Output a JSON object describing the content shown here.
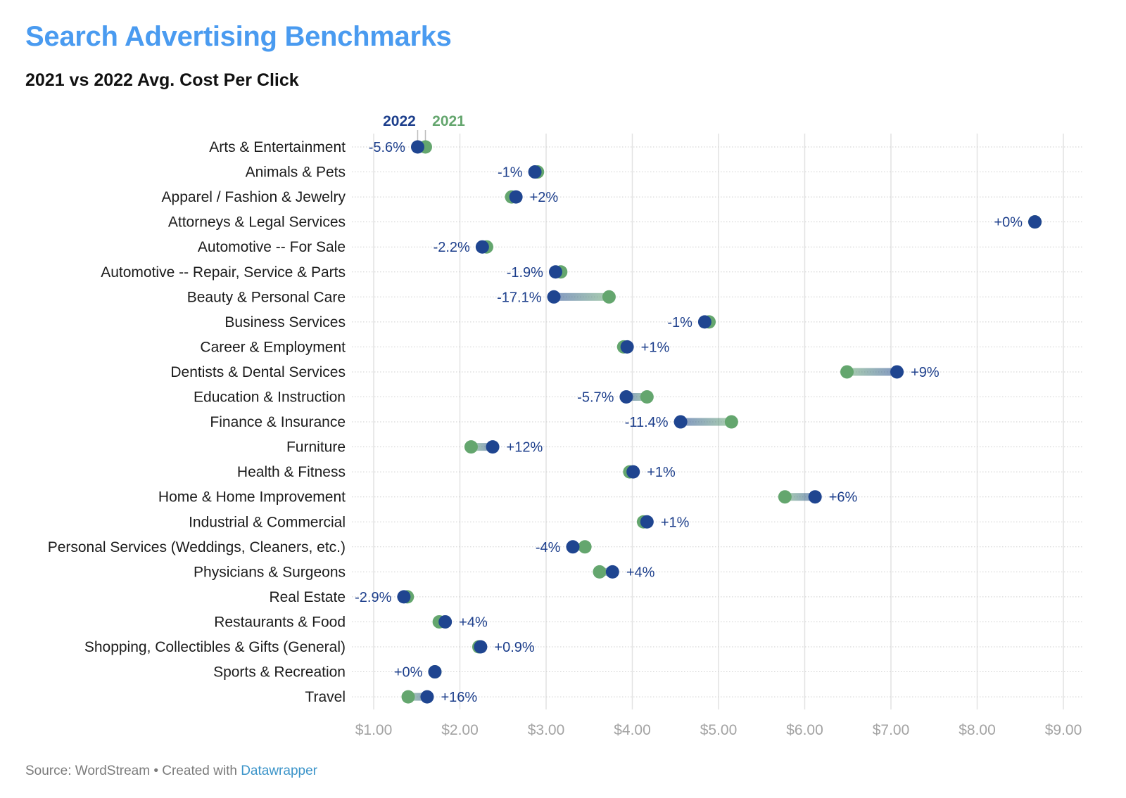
{
  "header": {
    "title": "Search Advertising Benchmarks",
    "subtitle": "2021 vs 2022 Avg. Cost Per Click"
  },
  "footer": {
    "source_text": "Source: WordStream • Created with ",
    "link_label": "Datawrapper"
  },
  "colors": {
    "title": "#4a9bf0",
    "series_2022": "#1f4590",
    "series_2021": "#64a66e",
    "gridline": "#e2e2e2",
    "tick_text": "#a3a3a3"
  },
  "chart_data": {
    "type": "dumbbell",
    "title": "Search Advertising Benchmarks",
    "subtitle": "2021 vs 2022 Avg. Cost Per Click",
    "xlabel": "",
    "ylabel": "",
    "xlim": [
      1,
      9
    ],
    "x_ticks": [
      1,
      2,
      3,
      4,
      5,
      6,
      7,
      8,
      9
    ],
    "x_tick_labels": [
      "$1.00",
      "$2.00",
      "$3.00",
      "$4.00",
      "$5.00",
      "$6.00",
      "$7.00",
      "$8.00",
      "$9.00"
    ],
    "grid": true,
    "legend": {
      "position": "top",
      "entries": [
        "2022",
        "2021"
      ]
    },
    "series": [
      {
        "name": "2021"
      },
      {
        "name": "2022"
      }
    ],
    "categories": [
      "Arts & Entertainment",
      "Animals & Pets",
      "Apparel / Fashion & Jewelry",
      "Attorneys & Legal Services",
      "Automotive -- For Sale",
      "Automotive -- Repair, Service & Parts",
      "Beauty & Personal Care",
      "Business Services",
      "Career & Employment",
      "Dentists & Dental Services",
      "Education & Instruction",
      "Finance & Insurance",
      "Furniture",
      "Health & Fitness",
      "Home & Home Improvement",
      "Industrial & Commercial",
      "Personal Services (Weddings, Cleaners, etc.)",
      "Physicians & Surgeons",
      "Real Estate",
      "Restaurants & Food",
      "Shopping, Collectibles & Gifts (General)",
      "Sports & Recreation",
      "Travel"
    ],
    "rows": [
      {
        "category": "Arts & Entertainment",
        "v2021": 1.6,
        "v2022": 1.51,
        "change": "-5.6%"
      },
      {
        "category": "Animals & Pets",
        "v2021": 2.9,
        "v2022": 2.87,
        "change": "-1%"
      },
      {
        "category": "Apparel / Fashion & Jewelry",
        "v2021": 2.6,
        "v2022": 2.65,
        "change": "+2%"
      },
      {
        "category": "Attorneys & Legal Services",
        "v2021": 8.67,
        "v2022": 8.67,
        "change": "+0%"
      },
      {
        "category": "Automotive -- For Sale",
        "v2021": 2.31,
        "v2022": 2.26,
        "change": "-2.2%"
      },
      {
        "category": "Automotive -- Repair, Service & Parts",
        "v2021": 3.17,
        "v2022": 3.11,
        "change": "-1.9%"
      },
      {
        "category": "Beauty & Personal Care",
        "v2021": 3.73,
        "v2022": 3.09,
        "change": "-17.1%"
      },
      {
        "category": "Business Services",
        "v2021": 4.89,
        "v2022": 4.84,
        "change": "-1%"
      },
      {
        "category": "Career & Employment",
        "v2021": 3.9,
        "v2022": 3.94,
        "change": "+1%"
      },
      {
        "category": "Dentists & Dental Services",
        "v2021": 6.49,
        "v2022": 7.07,
        "change": "+9%"
      },
      {
        "category": "Education & Instruction",
        "v2021": 4.17,
        "v2022": 3.93,
        "change": "-5.7%"
      },
      {
        "category": "Finance & Insurance",
        "v2021": 5.15,
        "v2022": 4.56,
        "change": "-11.4%"
      },
      {
        "category": "Furniture",
        "v2021": 2.13,
        "v2022": 2.38,
        "change": "+12%"
      },
      {
        "category": "Health & Fitness",
        "v2021": 3.97,
        "v2022": 4.01,
        "change": "+1%"
      },
      {
        "category": "Home & Home Improvement",
        "v2021": 5.77,
        "v2022": 6.12,
        "change": "+6%"
      },
      {
        "category": "Industrial & Commercial",
        "v2021": 4.13,
        "v2022": 4.17,
        "change": "+1%"
      },
      {
        "category": "Personal Services (Weddings, Cleaners, etc.)",
        "v2021": 3.45,
        "v2022": 3.31,
        "change": "-4%"
      },
      {
        "category": "Physicians & Surgeons",
        "v2021": 3.62,
        "v2022": 3.77,
        "change": "+4%"
      },
      {
        "category": "Real Estate",
        "v2021": 1.39,
        "v2022": 1.35,
        "change": "-2.9%"
      },
      {
        "category": "Restaurants & Food",
        "v2021": 1.76,
        "v2022": 1.83,
        "change": "+4%"
      },
      {
        "category": "Shopping, Collectibles & Gifts (General)",
        "v2021": 2.22,
        "v2022": 2.24,
        "change": "+0.9%"
      },
      {
        "category": "Sports & Recreation",
        "v2021": 1.71,
        "v2022": 1.71,
        "change": "+0%"
      },
      {
        "category": "Travel",
        "v2021": 1.4,
        "v2022": 1.62,
        "change": "+16%"
      }
    ]
  }
}
